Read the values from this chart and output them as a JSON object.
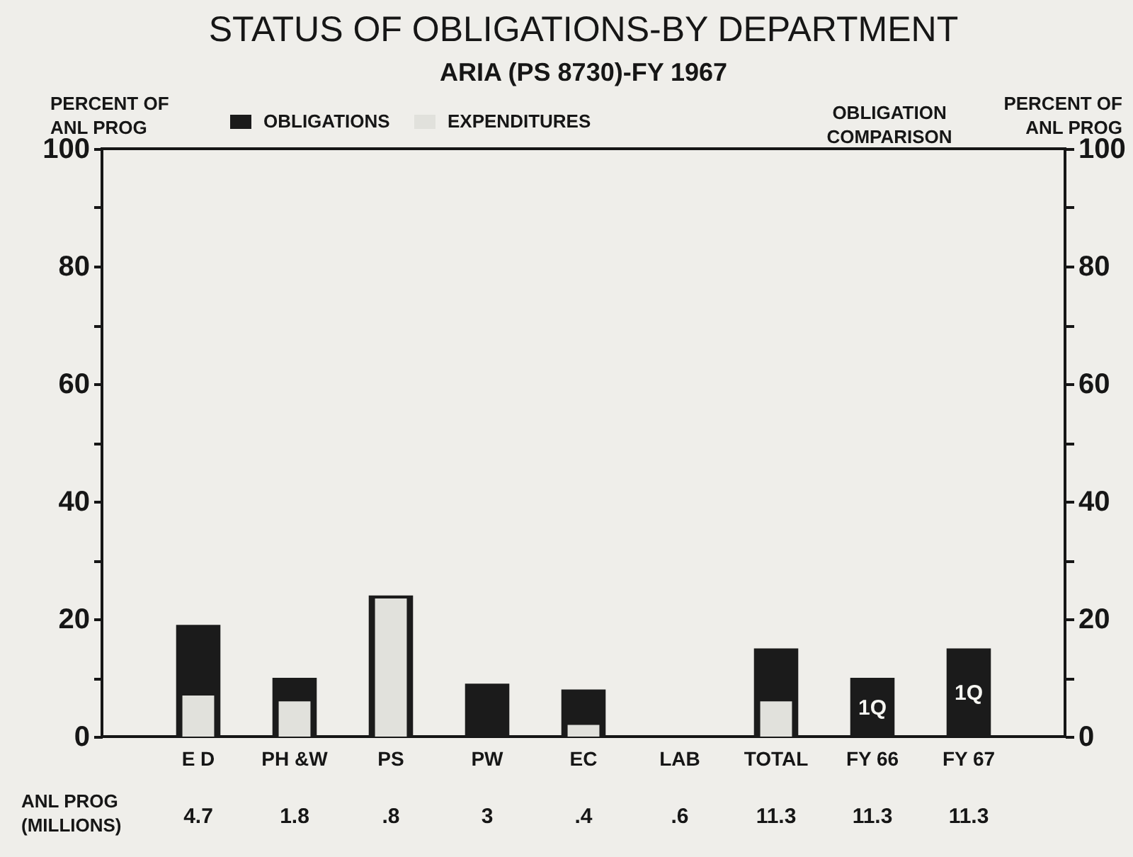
{
  "chart_data": {
    "type": "bar",
    "title": "STATUS OF OBLIGATIONS-BY DEPARTMENT",
    "subtitle": "ARIA (PS 8730)-FY 1967",
    "ylabel": "PERCENT OF ANL PROG",
    "y2label": "PERCENT OF ANL PROG",
    "categories": [
      "E D",
      "PH &W",
      "PS",
      "PW",
      "EC",
      "LAB",
      "TOTAL",
      "FY 66",
      "FY 67"
    ],
    "series": [
      {
        "name": "OBLIGATIONS",
        "color": "#1b1b1b",
        "values": [
          19,
          10,
          24,
          9,
          8,
          null,
          15,
          10,
          15
        ]
      },
      {
        "name": "EXPENDITURES",
        "color": "#e1e1dc",
        "values": [
          7,
          6,
          23.5,
          null,
          2,
          null,
          6,
          null,
          null
        ]
      }
    ],
    "ylim": [
      0,
      100
    ],
    "yticks": [
      0,
      {
        "value": 10,
        "label": null
      },
      20,
      {
        "value": 30,
        "label": null
      },
      40,
      {
        "value": 50,
        "label": null
      },
      60,
      {
        "value": 70,
        "label": null
      },
      80,
      {
        "value": 90,
        "label": null
      },
      100
    ],
    "y2lim": [
      0,
      100
    ],
    "y2ticks": [
      0,
      {
        "value": 10,
        "label": null
      },
      20,
      {
        "value": 30,
        "label": null
      },
      40,
      {
        "value": 50,
        "label": null
      },
      60,
      {
        "value": 70,
        "label": null
      },
      80,
      {
        "value": 90,
        "label": null
      },
      100
    ],
    "legend": "top",
    "annotations": [
      "OBLIGATION COMPARISON",
      "ANL PROG (MILLIONS)",
      "4.7",
      "1.8",
      ".8",
      "3",
      ".4",
      ".6",
      "11.3",
      "11.3",
      "11.3",
      "1Q",
      "1Q"
    ]
  }
}
